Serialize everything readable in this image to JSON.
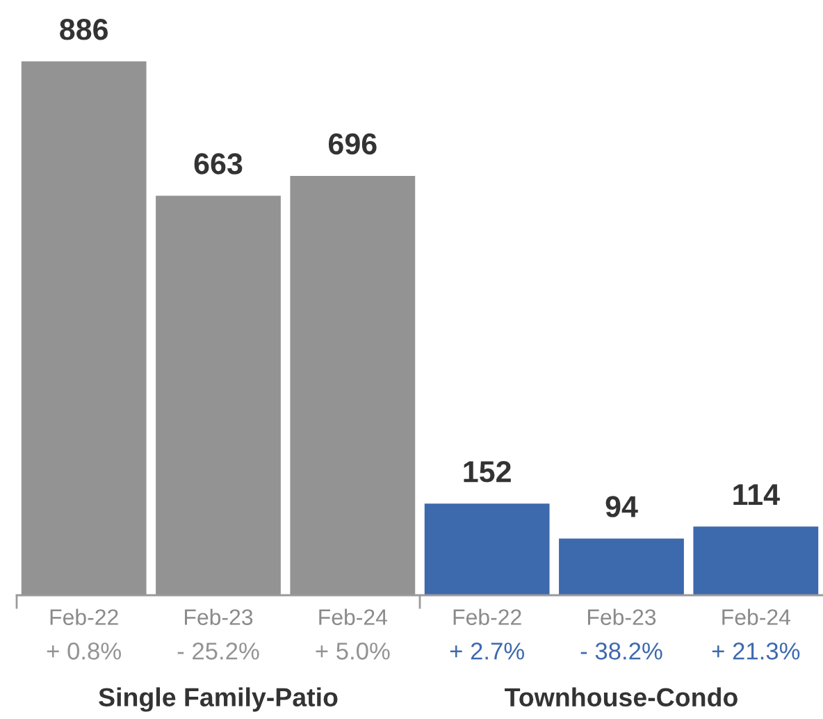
{
  "chart_data": {
    "type": "bar",
    "categories": [
      "Feb-22\n+ 0.8%",
      "Feb-23\n- 25.2%",
      "Feb-24\n+ 5.0%",
      "Feb-22\n+ 2.7%",
      "Feb-23\n- 38.2%",
      "Feb-24\n+ 21.3%"
    ],
    "values": [
      886,
      663,
      696,
      152,
      94,
      114
    ],
    "colors": [
      "#939393",
      "#939393",
      "#939393",
      "#3d69ad",
      "#3d69ad",
      "#3d69ad"
    ],
    "annotations": [
      "Single Family-Patio",
      "Townhouse-Condo"
    ],
    "data_labels": true
  }
}
